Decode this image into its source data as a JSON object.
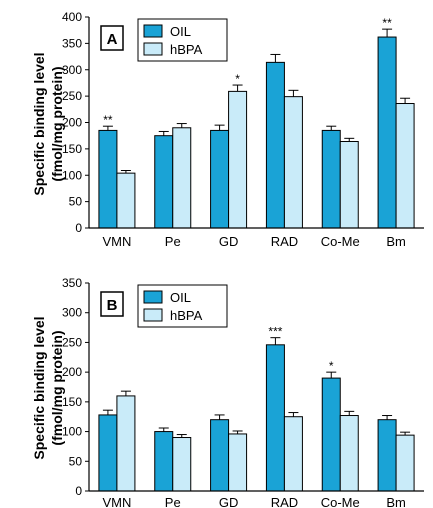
{
  "chart_data": [
    {
      "type": "bar",
      "panel_label": "A",
      "ylabel_line1": "Specific binding level",
      "ylabel_line2": "(fmol/mg protein)",
      "ylim": [
        0,
        400
      ],
      "yticks": [
        0,
        50,
        100,
        150,
        200,
        250,
        300,
        350,
        400
      ],
      "categories": [
        "VMN",
        "Pe",
        "GD",
        "RAD",
        "Co-Me",
        "Bm"
      ],
      "series": [
        {
          "name": "OIL",
          "color": "#1aa3d6",
          "values": [
            185,
            175,
            185,
            314,
            185,
            362
          ],
          "errors": [
            8,
            8,
            10,
            15,
            8,
            15
          ]
        },
        {
          "name": "hBPA",
          "color": "#c9ebf9",
          "values": [
            104,
            190,
            259,
            249,
            164,
            236
          ],
          "errors": [
            5,
            8,
            12,
            12,
            6,
            10
          ]
        }
      ],
      "annotations": [
        {
          "category_index": 0,
          "series_index": 0,
          "text": "**"
        },
        {
          "category_index": 2,
          "series_index": 1,
          "text": "*"
        },
        {
          "category_index": 5,
          "series_index": 0,
          "text": "**"
        }
      ],
      "legend_position": "top-left"
    },
    {
      "type": "bar",
      "panel_label": "B",
      "ylabel_line1": "Specific binding level",
      "ylabel_line2": "(fmol/mg protein)",
      "ylim": [
        0,
        350
      ],
      "yticks": [
        0,
        50,
        100,
        150,
        200,
        250,
        300,
        350
      ],
      "categories": [
        "VMN",
        "Pe",
        "GD",
        "RAD",
        "Co-Me",
        "Bm"
      ],
      "series": [
        {
          "name": "OIL",
          "color": "#1aa3d6",
          "values": [
            128,
            100,
            120,
            246,
            190,
            120
          ],
          "errors": [
            8,
            6,
            8,
            12,
            10,
            7
          ]
        },
        {
          "name": "hBPA",
          "color": "#c9ebf9",
          "values": [
            160,
            90,
            96,
            125,
            127,
            94
          ],
          "errors": [
            8,
            5,
            5,
            7,
            7,
            5
          ]
        }
      ],
      "annotations": [
        {
          "category_index": 3,
          "series_index": 0,
          "text": "***"
        },
        {
          "category_index": 4,
          "series_index": 0,
          "text": "*"
        }
      ],
      "legend_position": "top-left"
    }
  ]
}
